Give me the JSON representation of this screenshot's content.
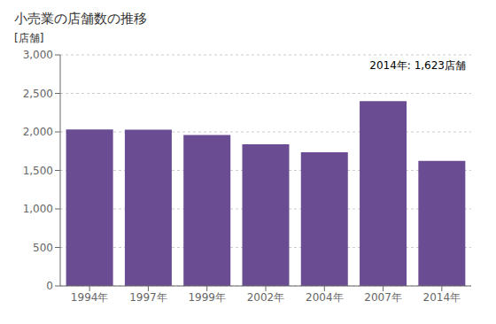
{
  "chart_data": {
    "type": "bar",
    "title": "小売業の店舗数の推移",
    "ylabel": "[店舗]",
    "annotation": "2014年: 1,623店舗",
    "categories": [
      "1994年",
      "1997年",
      "1999年",
      "2002年",
      "2004年",
      "2007年",
      "2014年"
    ],
    "values": [
      2033,
      2030,
      1960,
      1840,
      1735,
      2400,
      1623
    ],
    "color": "#6a4c93",
    "ylim": [
      0,
      3000
    ],
    "yticks": [
      0,
      500,
      {
        "value": 1000,
        "label": "1,000"
      },
      {
        "value": 1500,
        "label": "1,500"
      },
      {
        "value": 2000,
        "label": "2,000"
      },
      {
        "value": 2500,
        "label": "2,500"
      },
      {
        "value": 3000,
        "label": "3,000"
      }
    ],
    "grid": true
  }
}
